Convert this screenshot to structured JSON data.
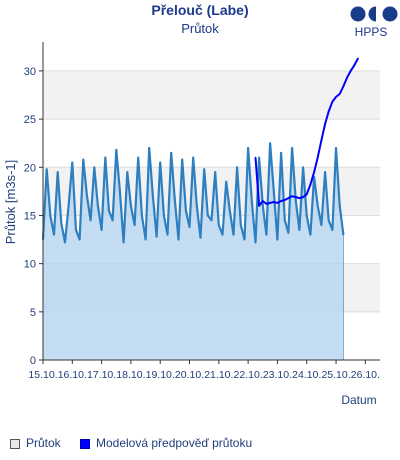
{
  "header": {
    "title": "Přelouč (Labe)",
    "subtitle": "Průtok",
    "logo_text": "HPPS"
  },
  "colors": {
    "observed_line": "#2e7fbf",
    "observed_fill": "#b6d4ef",
    "forecast_line": "#0000ff",
    "band": "#f2f2f2",
    "grid": "#dddddd",
    "axis_text": "#1f3f7a"
  },
  "chart_data": {
    "type": "line",
    "title": "Průtok",
    "xlabel": "Datum",
    "ylabel": "Průtok [m3s-1]",
    "ylim": [
      0,
      33
    ],
    "xlim": [
      "2023-10-15",
      "2023-10-26 12:00"
    ],
    "yticks": [
      0,
      5,
      10,
      15,
      20,
      25,
      30
    ],
    "xtick_labels": [
      "15.10.",
      "16.10.",
      "17.10.",
      "18.10.",
      "19.10.",
      "20.10.",
      "21.10.",
      "22.10.",
      "23.10.",
      "24.10.",
      "25.10.",
      "26.10."
    ],
    "grid": true,
    "legend_position": "bottom",
    "series": [
      {
        "name": "Průtok",
        "style": "area",
        "t_start": "2023-10-15 00:00",
        "t_step_hours": 3,
        "values": [
          12.5,
          19.8,
          15.0,
          13.0,
          19.5,
          14.2,
          12.2,
          16.0,
          20.5,
          13.5,
          12.5,
          20.8,
          17.0,
          14.5,
          20.0,
          16.0,
          13.5,
          21.0,
          15.5,
          14.5,
          21.8,
          17.5,
          12.2,
          19.5,
          16.0,
          14.0,
          21.0,
          15.0,
          12.5,
          22.0,
          17.0,
          12.8,
          20.5,
          15.0,
          13.0,
          21.5,
          16.5,
          12.5,
          20.8,
          15.5,
          13.8,
          21.0,
          16.0,
          12.7,
          19.8,
          15.0,
          14.5,
          19.5,
          14.0,
          13.0,
          18.5,
          15.5,
          13.0,
          20.0,
          14.0,
          12.5,
          22.0,
          16.5,
          12.2,
          21.0,
          16.0,
          13.0,
          22.5,
          17.5,
          12.5,
          21.5,
          14.5,
          13.2,
          22.0,
          16.5,
          13.5,
          20.0,
          15.0,
          13.0,
          19.0,
          16.0,
          14.0,
          19.5,
          14.5,
          13.5,
          22.0,
          16.0,
          13.0
        ]
      },
      {
        "name": "Modelová předpověď průtoku",
        "style": "line",
        "x": [
          "2023-10-22 06:00",
          "2023-10-22 09:00",
          "2023-10-22 12:00",
          "2023-10-22 15:00",
          "2023-10-22 18:00",
          "2023-10-22 21:00",
          "2023-10-23 00:00",
          "2023-10-23 03:00",
          "2023-10-23 06:00",
          "2023-10-23 09:00",
          "2023-10-23 12:00",
          "2023-10-23 15:00",
          "2023-10-23 18:00",
          "2023-10-23 21:00",
          "2023-10-24 00:00",
          "2023-10-24 03:00",
          "2023-10-24 06:00",
          "2023-10-24 09:00",
          "2023-10-24 12:00",
          "2023-10-24 15:00",
          "2023-10-24 18:00",
          "2023-10-24 21:00",
          "2023-10-25 00:00",
          "2023-10-25 03:00",
          "2023-10-25 06:00",
          "2023-10-25 09:00",
          "2023-10-25 12:00",
          "2023-10-25 15:00",
          "2023-10-25 18:00"
        ],
        "values": [
          21.0,
          16.0,
          16.5,
          16.2,
          16.3,
          16.4,
          16.3,
          16.5,
          16.6,
          16.8,
          17.0,
          16.9,
          16.8,
          16.9,
          17.2,
          18.2,
          19.5,
          21.0,
          22.8,
          24.5,
          25.8,
          26.8,
          27.3,
          27.6,
          28.4,
          29.3,
          30.0,
          30.6,
          31.3
        ]
      }
    ]
  },
  "legend": {
    "items": [
      "Průtok",
      "Modelová předpověď průtoku"
    ]
  }
}
